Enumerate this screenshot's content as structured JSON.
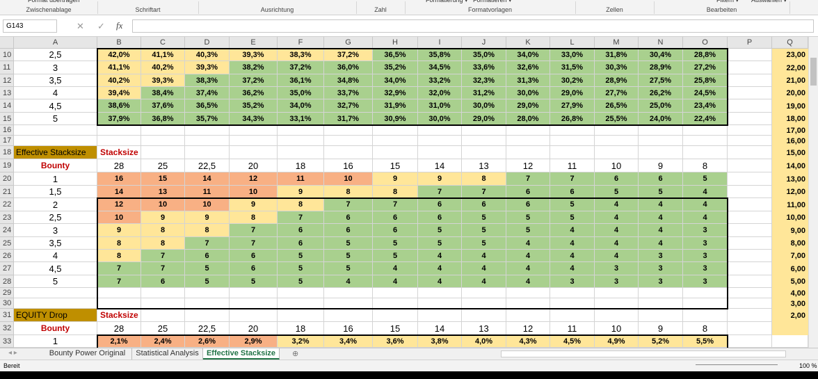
{
  "ribbon": {
    "top_items": [
      "Format übertragen",
      "Formatierung ▾",
      "Formatieren ▾",
      "Filtern ▾",
      "Auswählen ▾"
    ],
    "groups": [
      "Zwischenablage",
      "Schriftart",
      "Ausrichtung",
      "Zahl",
      "Formatvorlagen",
      "Zellen",
      "Bearbeiten"
    ]
  },
  "name_box": "G143",
  "fx": "fx",
  "columns": [
    "A",
    "B",
    "C",
    "D",
    "E",
    "F",
    "G",
    "H",
    "I",
    "J",
    "K",
    "L",
    "M",
    "N",
    "O",
    "P",
    "Q"
  ],
  "row_numbers": [
    "10",
    "11",
    "12",
    "13",
    "14",
    "15",
    "16",
    "17",
    "18",
    "19",
    "20",
    "21",
    "22",
    "23",
    "24",
    "25",
    "26",
    "27",
    "28",
    "29",
    "30",
    "31",
    "32",
    "33"
  ],
  "colors": {
    "r": "#f8b084",
    "y": "#ffe699",
    "g": "#a9d08e",
    "gold": "#bf8f00",
    "red": "#c00000",
    "tab": "#217346"
  },
  "table1": {
    "rows": [
      {
        "label": "2,5",
        "values": [
          "42,0%",
          "41,1%",
          "40,3%",
          "39,3%",
          "38,3%",
          "37,2%",
          "36,5%",
          "35,8%",
          "35,0%",
          "34,0%",
          "33,0%",
          "31,8%",
          "30,4%",
          "28,8%"
        ],
        "fills": "yyyyyygggggggg"
      },
      {
        "label": "3",
        "values": [
          "41,1%",
          "40,2%",
          "39,3%",
          "38,2%",
          "37,2%",
          "36,0%",
          "35,2%",
          "34,5%",
          "33,6%",
          "32,6%",
          "31,5%",
          "30,3%",
          "28,9%",
          "27,2%"
        ],
        "fills": "yyyggggggggggg"
      },
      {
        "label": "3,5",
        "values": [
          "40,2%",
          "39,3%",
          "38,3%",
          "37,2%",
          "36,1%",
          "34,8%",
          "34,0%",
          "33,2%",
          "32,3%",
          "31,3%",
          "30,2%",
          "28,9%",
          "27,5%",
          "25,8%"
        ],
        "fills": "yygggggggggggg"
      },
      {
        "label": "4",
        "values": [
          "39,4%",
          "38,4%",
          "37,4%",
          "36,2%",
          "35,0%",
          "33,7%",
          "32,9%",
          "32,0%",
          "31,2%",
          "30,0%",
          "29,0%",
          "27,7%",
          "26,2%",
          "24,5%"
        ],
        "fills": "yggggggggggggg"
      },
      {
        "label": "4,5",
        "values": [
          "38,6%",
          "37,6%",
          "36,5%",
          "35,2%",
          "34,0%",
          "32,7%",
          "31,9%",
          "31,0%",
          "30,0%",
          "29,0%",
          "27,9%",
          "26,5%",
          "25,0%",
          "23,4%"
        ],
        "fills": "gggggggggggggg"
      },
      {
        "label": "5",
        "values": [
          "37,9%",
          "36,8%",
          "35,7%",
          "34,3%",
          "33,1%",
          "31,7%",
          "30,9%",
          "30,0%",
          "29,0%",
          "28,0%",
          "26,8%",
          "25,5%",
          "24,0%",
          "22,4%"
        ],
        "fills": "gggggggggggggg"
      }
    ]
  },
  "section2": {
    "title": "Effective Stacksize",
    "subtitle": "Stacksize",
    "header_label": "Bounty",
    "headers": [
      "28",
      "25",
      "22,5",
      "20",
      "18",
      "16",
      "15",
      "14",
      "13",
      "12",
      "11",
      "10",
      "9",
      "8"
    ],
    "rows": [
      {
        "label": "1",
        "values": [
          "16",
          "15",
          "14",
          "12",
          "11",
          "10",
          "9",
          "9",
          "8",
          "7",
          "7",
          "6",
          "6",
          "5"
        ],
        "fills": "rrrrrryyyggggg"
      },
      {
        "label": "1,5",
        "values": [
          "14",
          "13",
          "11",
          "10",
          "9",
          "8",
          "8",
          "7",
          "7",
          "6",
          "6",
          "5",
          "5",
          "4"
        ],
        "fills": "rrrryyyggggggg"
      },
      {
        "label": "2",
        "values": [
          "12",
          "10",
          "10",
          "9",
          "8",
          "7",
          "7",
          "6",
          "6",
          "6",
          "5",
          "4",
          "4",
          "4"
        ],
        "fills": "rrryyggggggggg"
      },
      {
        "label": "2,5",
        "values": [
          "10",
          "9",
          "9",
          "8",
          "7",
          "6",
          "6",
          "6",
          "5",
          "5",
          "5",
          "4",
          "4",
          "4"
        ],
        "fills": "ryyygggggggggg"
      },
      {
        "label": "3",
        "values": [
          "9",
          "8",
          "8",
          "7",
          "6",
          "6",
          "6",
          "5",
          "5",
          "5",
          "4",
          "4",
          "4",
          "3"
        ],
        "fills": "yyyggggggggggg"
      },
      {
        "label": "3,5",
        "values": [
          "8",
          "8",
          "7",
          "7",
          "6",
          "5",
          "5",
          "5",
          "5",
          "4",
          "4",
          "4",
          "4",
          "3"
        ],
        "fills": "yygggggggggggg"
      },
      {
        "label": "4",
        "values": [
          "8",
          "7",
          "6",
          "6",
          "5",
          "5",
          "5",
          "4",
          "4",
          "4",
          "4",
          "4",
          "3",
          "3"
        ],
        "fills": "yggggggggggggg"
      },
      {
        "label": "4,5",
        "values": [
          "7",
          "7",
          "5",
          "6",
          "5",
          "5",
          "4",
          "4",
          "4",
          "4",
          "4",
          "3",
          "3",
          "3"
        ],
        "fills": "gggggggggggggg"
      },
      {
        "label": "5",
        "values": [
          "7",
          "6",
          "5",
          "5",
          "5",
          "4",
          "4",
          "4",
          "4",
          "4",
          "3",
          "3",
          "3",
          "3"
        ],
        "fills": "gggggggggggggg"
      }
    ]
  },
  "section3": {
    "title": "EQUITY Drop",
    "subtitle": "Stacksize",
    "header_label": "Bounty",
    "headers": [
      "28",
      "25",
      "22,5",
      "20",
      "18",
      "16",
      "15",
      "14",
      "13",
      "12",
      "11",
      "10",
      "9",
      "8"
    ],
    "rows": [
      {
        "label": "1",
        "values": [
          "2,1%",
          "2,4%",
          "2,6%",
          "2,9%",
          "3,2%",
          "3,4%",
          "3,6%",
          "3,8%",
          "4,0%",
          "4,3%",
          "4,5%",
          "4,9%",
          "5,2%",
          "5,5%"
        ],
        "fills": "rrrryyyyyyyyyy"
      }
    ]
  },
  "q_column": [
    "23,00",
    "22,00",
    "21,00",
    "20,00",
    "19,00",
    "18,00",
    "17,00",
    "16,00",
    "15,00",
    "14,00",
    "13,00",
    "12,00",
    "11,00",
    "10,00",
    "9,00",
    "8,00",
    "7,00",
    "6,00",
    "5,00",
    "4,00",
    "3,00",
    "2,00"
  ],
  "tabs": [
    {
      "label": "Bounty Power Original"
    },
    {
      "label": "Statistical Analysis"
    },
    {
      "label": "Effective Stacksize",
      "active": true
    }
  ],
  "status": "Bereit",
  "zoom": "100 %"
}
